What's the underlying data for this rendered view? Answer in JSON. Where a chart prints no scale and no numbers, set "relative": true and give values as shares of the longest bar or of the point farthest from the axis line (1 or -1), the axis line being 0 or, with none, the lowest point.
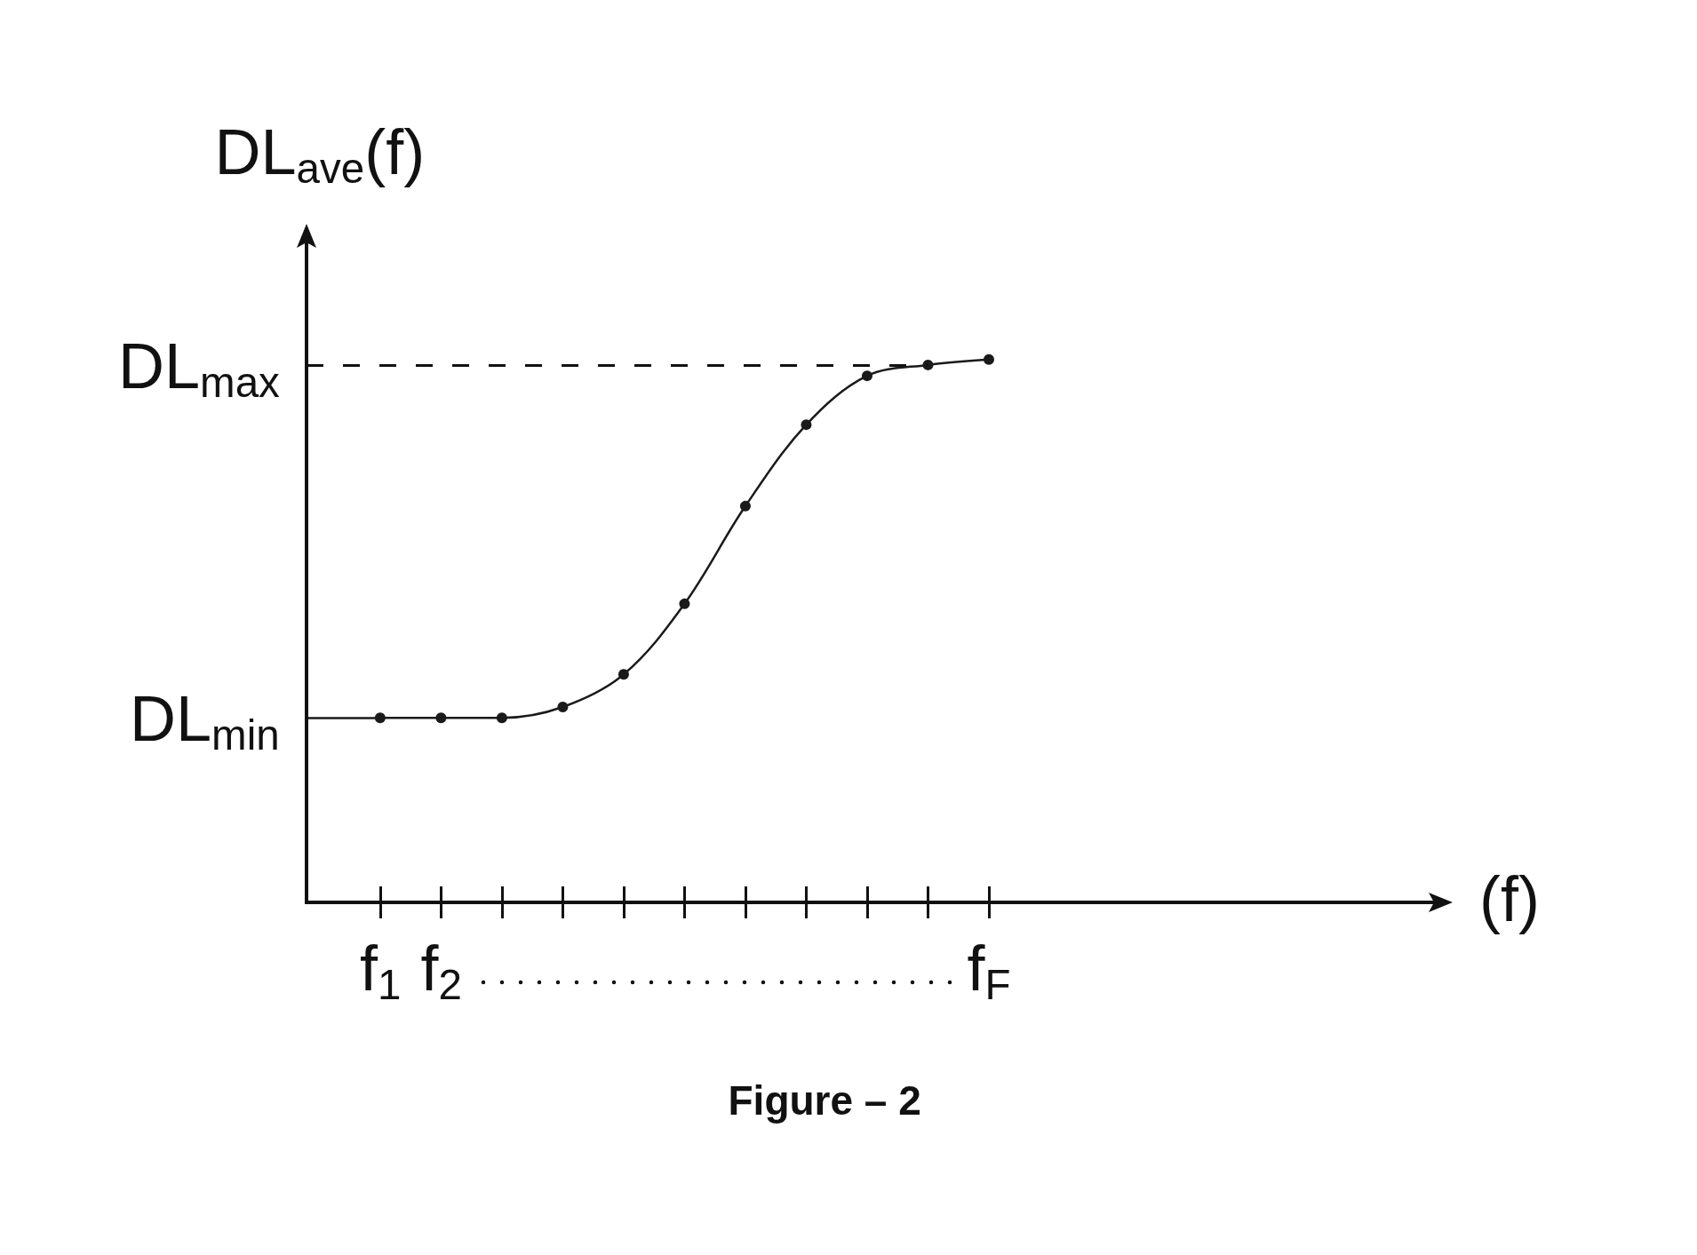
{
  "chart_data": {
    "type": "line",
    "relative": true,
    "ylabel": "DL$_{ave}$(f)",
    "categories": [
      "f$_{1}$",
      "f$_{2}$",
      null,
      null,
      null,
      null,
      null,
      null,
      null,
      null,
      "f$_{F}$"
    ],
    "grid": false,
    "series": [
      {
        "color": "#1a1a1a",
        "marker": "circle",
        "line_style": "solid",
        "values": [
          0.34,
          0.34,
          0.34,
          0.36,
          0.42,
          0.55,
          0.73,
          0.88,
          0.97,
          0.99,
          1
        ]
      }
    ],
    "ref_lines": [
      {
        "axis": "y",
        "value": 0.99,
        "label": "DL$_{max}$",
        "line_style": "dashed",
        "color": "#111111"
      },
      {
        "axis": "y",
        "value": 0.34,
        "label": "DL$_{min}$",
        "line_style": "solid",
        "color": "#1a1a1a"
      }
    ],
    "annotations": [
      "(f)",
      "Figure – 2"
    ]
  }
}
